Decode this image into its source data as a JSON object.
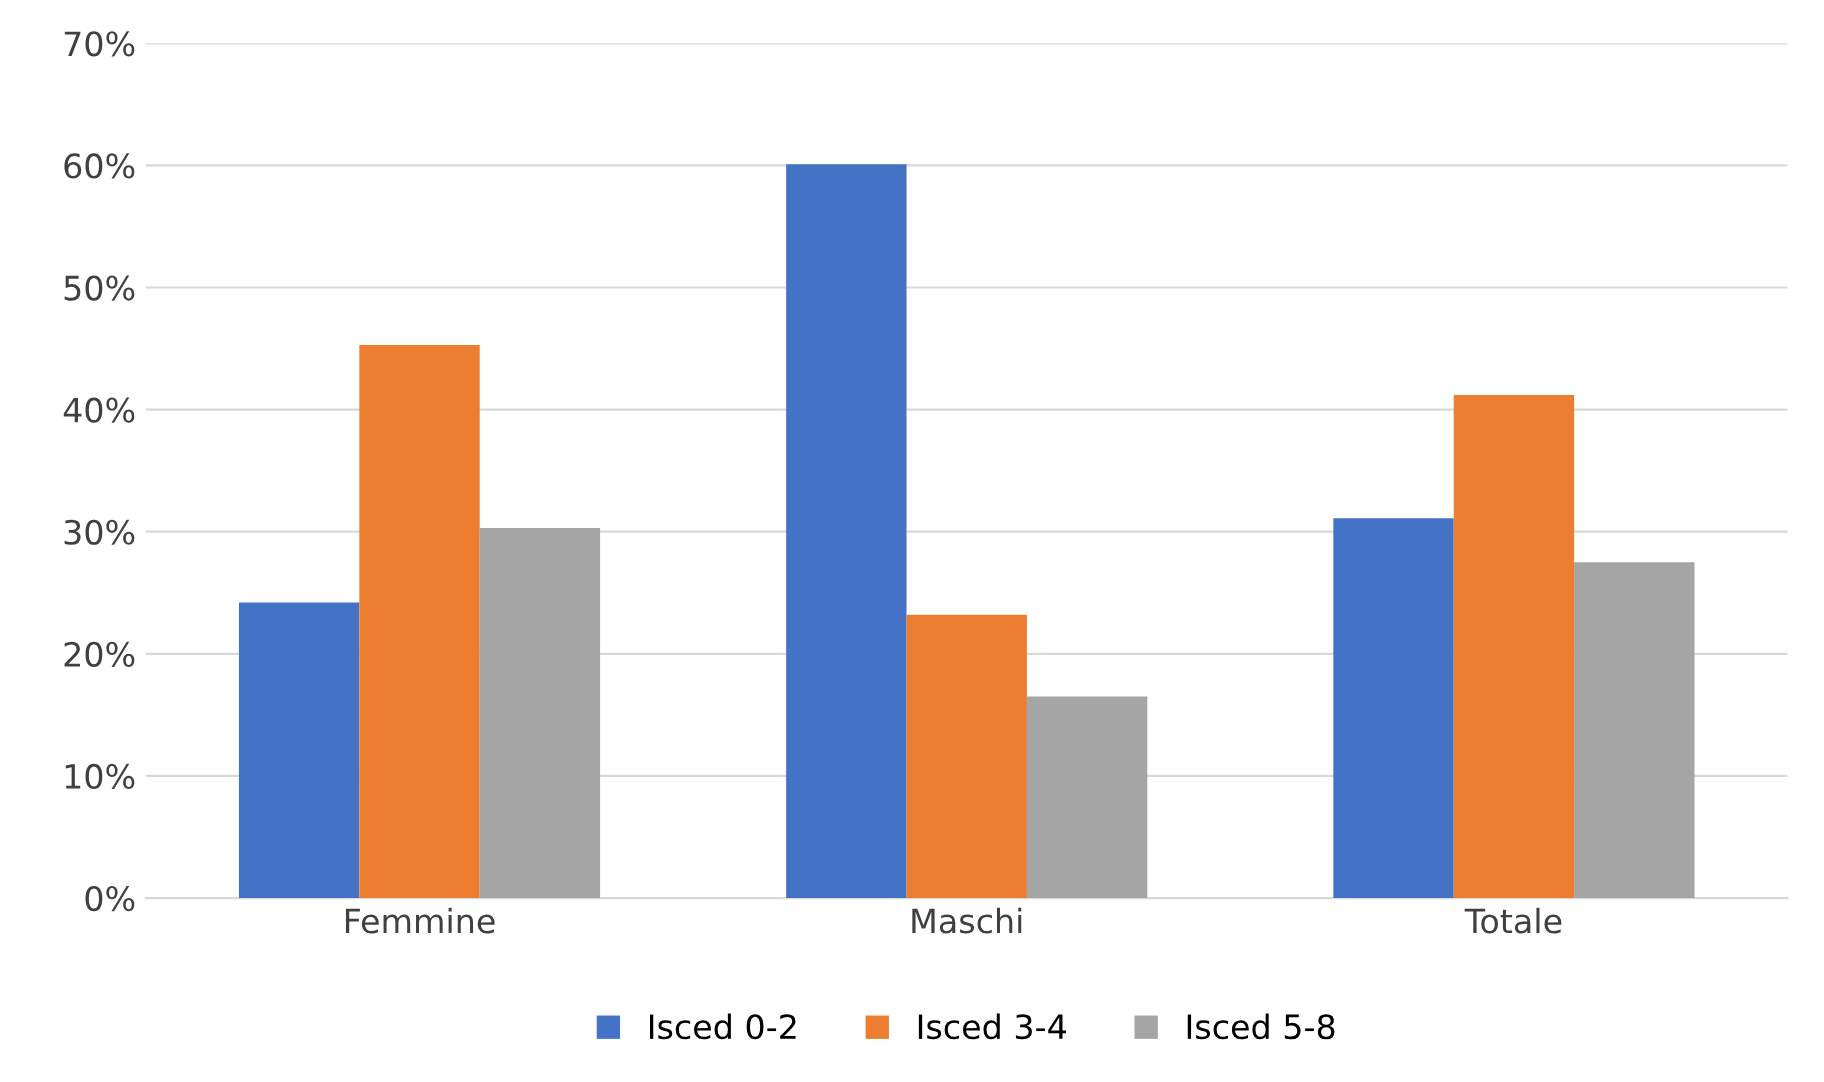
{
  "chart_data": {
    "type": "bar",
    "categories": [
      "Femmine",
      "Maschi",
      "Totale"
    ],
    "series": [
      {
        "name": "Isced 0-2",
        "color": "#4472c4",
        "values": [
          24.2,
          60.1,
          31.1
        ]
      },
      {
        "name": "Isced 3-4",
        "color": "#ed7d31",
        "values": [
          45.3,
          23.2,
          41.2
        ]
      },
      {
        "name": "Isced 5-8",
        "color": "#a5a5a5",
        "values": [
          30.3,
          16.5,
          27.5
        ]
      }
    ],
    "ylim": [
      0,
      70
    ],
    "yticks": [
      {
        "value": 0,
        "label": "0%"
      },
      {
        "value": 10,
        "label": "10%"
      },
      {
        "value": 20,
        "label": "20%"
      },
      {
        "value": 30,
        "label": "30%"
      },
      {
        "value": 40,
        "label": "40%"
      },
      {
        "value": 50,
        "label": "50%"
      },
      {
        "value": 60,
        "label": "60%"
      },
      {
        "value": 70,
        "label": "70%"
      }
    ],
    "grid": "y",
    "legend": "bottom"
  }
}
